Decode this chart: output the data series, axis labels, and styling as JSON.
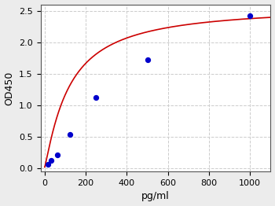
{
  "scatter_x": [
    15,
    30,
    62,
    125,
    250,
    500,
    1000
  ],
  "scatter_y": [
    0.07,
    0.13,
    0.22,
    0.54,
    1.12,
    1.72,
    2.42
  ],
  "scatter_color": "#0000cc",
  "scatter_size": 18,
  "curve_color": "#cc0000",
  "curve_linewidth": 1.2,
  "xlabel": "pg/ml",
  "ylabel": "OD450",
  "xlim": [
    -20,
    1100
  ],
  "ylim": [
    -0.05,
    2.6
  ],
  "xticks": [
    0,
    200,
    400,
    600,
    800,
    1000
  ],
  "yticks": [
    0.0,
    0.5,
    1.0,
    1.5,
    2.0,
    2.5
  ],
  "grid_color": "#cccccc",
  "grid_linestyle": "--",
  "background_color": "#ececec",
  "plot_background": "#ffffff",
  "4pl_params": {
    "A": 0.02,
    "B": 1.15,
    "C": 120,
    "D": 2.58
  }
}
